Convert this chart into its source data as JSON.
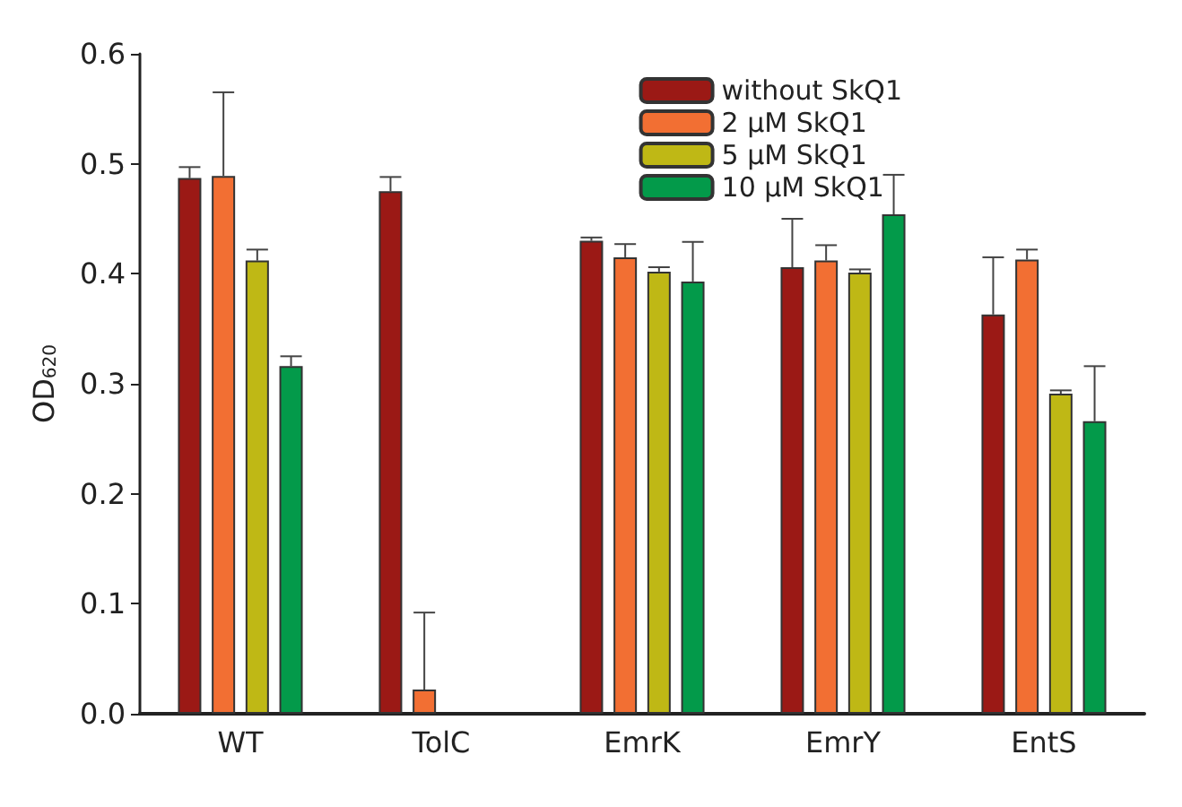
{
  "chart_data": {
    "type": "bar",
    "ylabel": "OD$_{620}$",
    "categories": [
      "WT",
      "TolC",
      "EmrK",
      "EmrY",
      "EntS"
    ],
    "series": [
      {
        "name": "without SkQ1",
        "color": "#9b1915",
        "values": [
          0.487,
          0.475,
          0.43,
          0.406,
          0.363
        ],
        "errors": [
          [
            0.487,
            0.497
          ],
          [
            0.475,
            0.488
          ],
          [
            0.43,
            0.433
          ],
          [
            0.406,
            0.45
          ],
          [
            0.363,
            0.415
          ]
        ]
      },
      {
        "name": "2 μM SkQ1",
        "color": "#f26f33",
        "values": [
          0.489,
          0.022,
          0.415,
          0.412,
          0.413
        ],
        "errors": [
          [
            0.489,
            0.565
          ],
          [
            0.022,
            0.092
          ],
          [
            0.415,
            0.427
          ],
          [
            0.412,
            0.426
          ],
          [
            0.413,
            0.422
          ]
        ]
      },
      {
        "name": "5 μM SkQ1",
        "color": "#bfb815",
        "values": [
          0.412,
          null,
          0.402,
          0.401,
          0.291
        ],
        "errors": [
          [
            0.412,
            0.422
          ],
          null,
          [
            0.402,
            0.406
          ],
          [
            0.401,
            0.404
          ],
          [
            0.291,
            0.294
          ]
        ]
      },
      {
        "name": "10 μM SkQ1",
        "color": "#039a4a",
        "values": [
          0.316,
          null,
          0.393,
          0.454,
          0.266
        ],
        "errors": [
          [
            0.316,
            0.325
          ],
          null,
          [
            0.393,
            0.429
          ],
          [
            0.454,
            0.49
          ],
          [
            0.266,
            0.316
          ]
        ]
      }
    ],
    "ylim": [
      0,
      0.6
    ],
    "yticks": [
      {
        "value": 0,
        "label": "0.0"
      },
      {
        "value": 0.1,
        "label": "0.1"
      },
      {
        "value": 0.2,
        "label": "0.2"
      },
      {
        "value": 0.3,
        "label": "0.3"
      },
      {
        "value": 0.4,
        "label": "0.4"
      },
      {
        "value": 0.5,
        "label": "0.5"
      },
      {
        "value": 0.6,
        "label": "0.6"
      }
    ],
    "grid": false,
    "legend": "top right"
  }
}
